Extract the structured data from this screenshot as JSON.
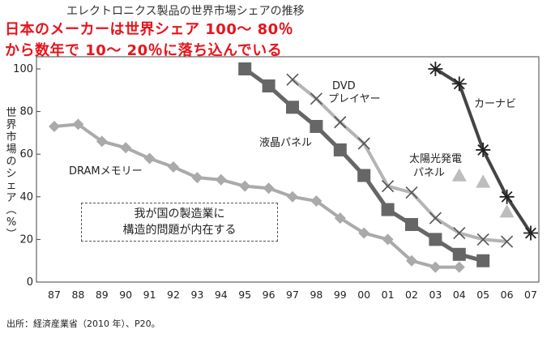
{
  "header": {
    "subtitle": "エレクトロニクス製品の世界市場シェアの推移",
    "headline_line1": "日本のメーカーは世界シェア 100～ 80％",
    "headline_line2": "から数年で 10～ 20％に落ち込んでいる"
  },
  "annotation_box": {
    "line1": "我が国の製造業に",
    "line2": "構造的問題が内在する"
  },
  "source": "出所：経済産業省（2010 年）、P20。",
  "chart_data": {
    "type": "line",
    "ylabel": "世界市場のシェア（%）",
    "ylim": [
      0,
      100
    ],
    "yticks": [
      "0",
      "20",
      "40",
      "60",
      "80",
      "100"
    ],
    "x_categories": [
      "87",
      "88",
      "89",
      "90",
      "91",
      "92",
      "93",
      "94",
      "95",
      "96",
      "97",
      "98",
      "99",
      "00",
      "01",
      "02",
      "03",
      "04",
      "05",
      "06",
      "07"
    ],
    "grid": false,
    "series": [
      {
        "name": "DRAMメモリー",
        "marker": "diamond",
        "color": "#aaaaaa",
        "points": [
          [
            0,
            73
          ],
          [
            1,
            74
          ],
          [
            2,
            66
          ],
          [
            3,
            63
          ],
          [
            4,
            58
          ],
          [
            5,
            54
          ],
          [
            6,
            49
          ],
          [
            7,
            48
          ],
          [
            8,
            45
          ],
          [
            9,
            44
          ],
          [
            10,
            40
          ],
          [
            11,
            38
          ],
          [
            12,
            30
          ],
          [
            13,
            23
          ],
          [
            14,
            20
          ],
          [
            15,
            10
          ],
          [
            16,
            7
          ],
          [
            17,
            7
          ]
        ]
      },
      {
        "name": "液晶パネル",
        "marker": "square",
        "color": "#666666",
        "points": [
          [
            8,
            100
          ],
          [
            9,
            92
          ],
          [
            10,
            82
          ],
          [
            11,
            73
          ],
          [
            12,
            62
          ],
          [
            13,
            50
          ],
          [
            14,
            34
          ],
          [
            15,
            27
          ],
          [
            16,
            20
          ],
          [
            17,
            13
          ],
          [
            18,
            10
          ]
        ]
      },
      {
        "name": "DVD プレイヤー",
        "name_line1": "DVD",
        "name_line2": "プレイヤー",
        "marker": "x",
        "color": "#b4b4b4",
        "points": [
          [
            10,
            95
          ],
          [
            11,
            86
          ],
          [
            12,
            75
          ],
          [
            13,
            65
          ],
          [
            14,
            45
          ],
          [
            15,
            42
          ],
          [
            16,
            30
          ],
          [
            17,
            23
          ],
          [
            18,
            20
          ],
          [
            19,
            19
          ]
        ]
      },
      {
        "name": "太陽光発電 パネル",
        "name_line1": "太陽光発電",
        "name_line2": "パネル",
        "marker": "triangle",
        "color": "#bdbdbd",
        "points": [
          [
            17,
            50
          ],
          [
            18,
            47
          ],
          [
            19,
            33
          ]
        ]
      },
      {
        "name": "カーナビ",
        "marker": "star",
        "color": "#444444",
        "points": [
          [
            16,
            100
          ],
          [
            17,
            93
          ],
          [
            18,
            62
          ],
          [
            19,
            40
          ],
          [
            20,
            23
          ]
        ]
      }
    ]
  }
}
